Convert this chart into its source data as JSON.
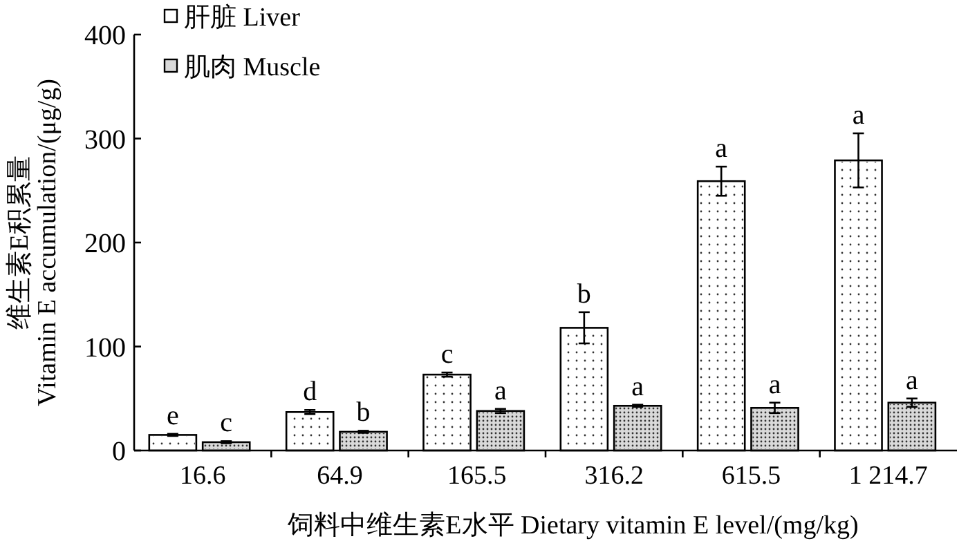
{
  "chart_data": {
    "type": "bar",
    "xlabel": "饲料中维生素E水平  Dietary vitamin E level/(mg/kg)",
    "ylabel": "维生素E积累量\nVitamin E  accumulation/(μg/g)",
    "categories": [
      "16.6",
      "64.9",
      "165.5",
      "316.2",
      "615.5",
      "1 214.7"
    ],
    "series": [
      {
        "name": "肝脏  Liver",
        "color": "#ffffff",
        "values": [
          15,
          37,
          73,
          118,
          259,
          279
        ],
        "errors": [
          1,
          2,
          2,
          15,
          14,
          26
        ]
      },
      {
        "name": "肌肉  Muscle",
        "color": "#d9d9d9",
        "values": [
          8,
          18,
          38,
          43,
          41,
          46
        ],
        "errors": [
          1,
          1,
          2,
          1,
          5,
          4
        ]
      }
    ],
    "ylim": [
      0,
      400
    ],
    "yticks": [
      0,
      100,
      200,
      300,
      400
    ],
    "grid": false,
    "legend": "top left",
    "annotations": [
      {
        "text": "e",
        "x": "16.6",
        "y": 15
      },
      {
        "text": "c",
        "x": "16.6",
        "y": 8
      },
      {
        "text": "d",
        "x": "64.9",
        "y": 37
      },
      {
        "text": "b",
        "x": "64.9",
        "y": 18
      },
      {
        "text": "c",
        "x": "165.5",
        "y": 73
      },
      {
        "text": "a",
        "x": "165.5",
        "y": 38
      },
      {
        "text": "b",
        "x": "316.2",
        "y": 118
      },
      {
        "text": "a",
        "x": "316.2",
        "y": 43
      },
      {
        "text": "a",
        "x": "615.5",
        "y": 259
      },
      {
        "text": "a",
        "x": "615.5",
        "y": 41
      },
      {
        "text": "a",
        "x": "1 214.7",
        "y": 279
      },
      {
        "text": "a",
        "x": "1 214.7",
        "y": 46
      }
    ]
  }
}
